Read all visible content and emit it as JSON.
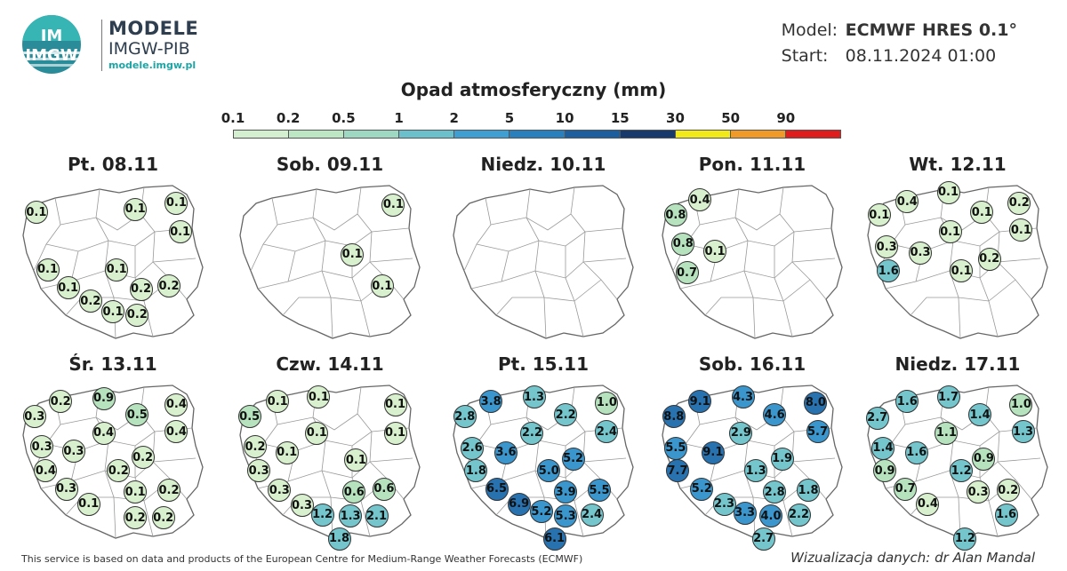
{
  "header": {
    "logo_text": "IMGW",
    "logo_title": "MODELE",
    "logo_subtitle": "IMGW-PIB",
    "logo_url": "modele.imgw.pl",
    "model_label": "Model:",
    "model_value": "ECMWF HRES 0.1°",
    "start_label": "Start:",
    "start_value": "08.11.2024 01:00"
  },
  "legend": {
    "title": "Opad atmosferyczny (mm)",
    "ticks": [
      "0.1",
      "0.2",
      "0.5",
      "1",
      "2",
      "5",
      "10",
      "15",
      "30",
      "50",
      "90"
    ],
    "colors": [
      "#ffffff",
      "#d4eed0",
      "#bde7c4",
      "#9ed8c3",
      "#6cc0cc",
      "#3f9fd2",
      "#2a7fbd",
      "#1d5f9e",
      "#17396b",
      "#f2e91a",
      "#f09a2a",
      "#e01d1d"
    ]
  },
  "colors": {
    "low": "#d8f0cd",
    "light": "#b6e2be",
    "mid": "#74c5cc",
    "high": "#3a96cc",
    "very_high": "#2872b0"
  },
  "panels": [
    {
      "title": "Pt. 08.11",
      "values": [
        {
          "v": "0.1",
          "x": 0.09,
          "y": 0.2
        },
        {
          "v": "0.1",
          "x": 0.62,
          "y": 0.18
        },
        {
          "v": "0.1",
          "x": 0.84,
          "y": 0.14
        },
        {
          "v": "0.1",
          "x": 0.86,
          "y": 0.33
        },
        {
          "v": "0.1",
          "x": 0.15,
          "y": 0.58
        },
        {
          "v": "0.1",
          "x": 0.52,
          "y": 0.58
        },
        {
          "v": "0.1",
          "x": 0.26,
          "y": 0.7
        },
        {
          "v": "0.2",
          "x": 0.65,
          "y": 0.71
        },
        {
          "v": "0.2",
          "x": 0.8,
          "y": 0.69
        },
        {
          "v": "0.2",
          "x": 0.38,
          "y": 0.79
        },
        {
          "v": "0.1",
          "x": 0.5,
          "y": 0.86
        },
        {
          "v": "0.2",
          "x": 0.63,
          "y": 0.88
        }
      ]
    },
    {
      "title": "Sob. 09.11",
      "values": [
        {
          "v": "0.1",
          "x": 0.84,
          "y": 0.15
        },
        {
          "v": "0.1",
          "x": 0.62,
          "y": 0.48
        },
        {
          "v": "0.1",
          "x": 0.78,
          "y": 0.69
        }
      ]
    },
    {
      "title": "Niedz. 10.11",
      "values": []
    },
    {
      "title": "Pon. 11.11",
      "values": [
        {
          "v": "0.4",
          "x": 0.22,
          "y": 0.12
        },
        {
          "v": "0.8",
          "x": 0.09,
          "y": 0.22
        },
        {
          "v": "0.8",
          "x": 0.13,
          "y": 0.41
        },
        {
          "v": "0.1",
          "x": 0.3,
          "y": 0.46
        },
        {
          "v": "0.7",
          "x": 0.15,
          "y": 0.6
        }
      ]
    },
    {
      "title": "Wt. 12.11",
      "values": [
        {
          "v": "0.4",
          "x": 0.23,
          "y": 0.13
        },
        {
          "v": "0.1",
          "x": 0.45,
          "y": 0.07
        },
        {
          "v": "0.2",
          "x": 0.83,
          "y": 0.14
        },
        {
          "v": "0.1",
          "x": 0.08,
          "y": 0.22
        },
        {
          "v": "0.1",
          "x": 0.63,
          "y": 0.2
        },
        {
          "v": "0.1",
          "x": 0.84,
          "y": 0.32
        },
        {
          "v": "0.1",
          "x": 0.46,
          "y": 0.33
        },
        {
          "v": "0.3",
          "x": 0.12,
          "y": 0.43
        },
        {
          "v": "0.3",
          "x": 0.3,
          "y": 0.47
        },
        {
          "v": "0.2",
          "x": 0.67,
          "y": 0.51
        },
        {
          "v": "0.1",
          "x": 0.52,
          "y": 0.59
        },
        {
          "v": "1.6",
          "x": 0.13,
          "y": 0.59
        }
      ]
    },
    {
      "title": "Śr. 13.11",
      "values": [
        {
          "v": "0.2",
          "x": 0.22,
          "y": 0.13
        },
        {
          "v": "0.9",
          "x": 0.45,
          "y": 0.11
        },
        {
          "v": "0.4",
          "x": 0.84,
          "y": 0.15
        },
        {
          "v": "0.3",
          "x": 0.08,
          "y": 0.23
        },
        {
          "v": "0.5",
          "x": 0.63,
          "y": 0.22
        },
        {
          "v": "0.4",
          "x": 0.84,
          "y": 0.33
        },
        {
          "v": "0.4",
          "x": 0.45,
          "y": 0.34
        },
        {
          "v": "0.3",
          "x": 0.12,
          "y": 0.43
        },
        {
          "v": "0.3",
          "x": 0.29,
          "y": 0.46
        },
        {
          "v": "0.2",
          "x": 0.66,
          "y": 0.5
        },
        {
          "v": "0.4",
          "x": 0.14,
          "y": 0.59
        },
        {
          "v": "0.2",
          "x": 0.53,
          "y": 0.59
        },
        {
          "v": "0.3",
          "x": 0.25,
          "y": 0.71
        },
        {
          "v": "0.1",
          "x": 0.62,
          "y": 0.73
        },
        {
          "v": "0.2",
          "x": 0.8,
          "y": 0.72
        },
        {
          "v": "0.1",
          "x": 0.37,
          "y": 0.81
        },
        {
          "v": "0.2",
          "x": 0.62,
          "y": 0.9
        },
        {
          "v": "0.2",
          "x": 0.77,
          "y": 0.9
        }
      ]
    },
    {
      "title": "Czw. 14.11",
      "values": [
        {
          "v": "0.1",
          "x": 0.22,
          "y": 0.13
        },
        {
          "v": "0.1",
          "x": 0.44,
          "y": 0.1
        },
        {
          "v": "0.1",
          "x": 0.85,
          "y": 0.15
        },
        {
          "v": "0.5",
          "x": 0.07,
          "y": 0.23
        },
        {
          "v": "0.1",
          "x": 0.43,
          "y": 0.34
        },
        {
          "v": "0.1",
          "x": 0.85,
          "y": 0.34
        },
        {
          "v": "0.2",
          "x": 0.1,
          "y": 0.43
        },
        {
          "v": "0.1",
          "x": 0.27,
          "y": 0.47
        },
        {
          "v": "0.1",
          "x": 0.64,
          "y": 0.52
        },
        {
          "v": "0.3",
          "x": 0.12,
          "y": 0.59
        },
        {
          "v": "0.3",
          "x": 0.23,
          "y": 0.72
        },
        {
          "v": "0.6",
          "x": 0.63,
          "y": 0.73
        },
        {
          "v": "0.6",
          "x": 0.79,
          "y": 0.71
        },
        {
          "v": "0.3",
          "x": 0.35,
          "y": 0.82
        },
        {
          "v": "1.2",
          "x": 0.46,
          "y": 0.88
        },
        {
          "v": "1.3",
          "x": 0.61,
          "y": 0.89
        },
        {
          "v": "2.1",
          "x": 0.75,
          "y": 0.89
        },
        {
          "v": "1.8",
          "x": 0.55,
          "y": 1.04
        }
      ]
    },
    {
      "title": "Pt. 15.11",
      "values": [
        {
          "v": "3.8",
          "x": 0.22,
          "y": 0.13
        },
        {
          "v": "1.3",
          "x": 0.45,
          "y": 0.1
        },
        {
          "v": "1.0",
          "x": 0.84,
          "y": 0.14
        },
        {
          "v": "2.8",
          "x": 0.08,
          "y": 0.23
        },
        {
          "v": "2.2",
          "x": 0.62,
          "y": 0.22
        },
        {
          "v": "2.4",
          "x": 0.84,
          "y": 0.33
        },
        {
          "v": "2.2",
          "x": 0.44,
          "y": 0.34
        },
        {
          "v": "2.6",
          "x": 0.12,
          "y": 0.44
        },
        {
          "v": "3.6",
          "x": 0.3,
          "y": 0.47
        },
        {
          "v": "5.2",
          "x": 0.66,
          "y": 0.51
        },
        {
          "v": "1.8",
          "x": 0.14,
          "y": 0.59
        },
        {
          "v": "5.0",
          "x": 0.53,
          "y": 0.59
        },
        {
          "v": "6.5",
          "x": 0.25,
          "y": 0.71
        },
        {
          "v": "3.9",
          "x": 0.62,
          "y": 0.73
        },
        {
          "v": "5.5",
          "x": 0.8,
          "y": 0.72
        },
        {
          "v": "6.9",
          "x": 0.37,
          "y": 0.81
        },
        {
          "v": "5.2",
          "x": 0.49,
          "y": 0.86
        },
        {
          "v": "5.3",
          "x": 0.62,
          "y": 0.89
        },
        {
          "v": "2.4",
          "x": 0.76,
          "y": 0.88
        },
        {
          "v": "6.1",
          "x": 0.56,
          "y": 1.04
        }
      ]
    },
    {
      "title": "Sob. 16.11",
      "values": [
        {
          "v": "9.1",
          "x": 0.22,
          "y": 0.13
        },
        {
          "v": "4.3",
          "x": 0.45,
          "y": 0.1
        },
        {
          "v": "8.0",
          "x": 0.84,
          "y": 0.14
        },
        {
          "v": "8.8",
          "x": 0.08,
          "y": 0.23
        },
        {
          "v": "4.6",
          "x": 0.62,
          "y": 0.22
        },
        {
          "v": "5.7",
          "x": 0.85,
          "y": 0.33
        },
        {
          "v": "2.9",
          "x": 0.44,
          "y": 0.34
        },
        {
          "v": "5.5",
          "x": 0.09,
          "y": 0.44
        },
        {
          "v": "9.1",
          "x": 0.29,
          "y": 0.47
        },
        {
          "v": "1.9",
          "x": 0.66,
          "y": 0.51
        },
        {
          "v": "7.7",
          "x": 0.1,
          "y": 0.59
        },
        {
          "v": "1.3",
          "x": 0.52,
          "y": 0.59
        },
        {
          "v": "5.2",
          "x": 0.23,
          "y": 0.71
        },
        {
          "v": "2.8",
          "x": 0.62,
          "y": 0.73
        },
        {
          "v": "1.8",
          "x": 0.8,
          "y": 0.72
        },
        {
          "v": "2.3",
          "x": 0.35,
          "y": 0.81
        },
        {
          "v": "3.3",
          "x": 0.46,
          "y": 0.87
        },
        {
          "v": "4.0",
          "x": 0.6,
          "y": 0.89
        },
        {
          "v": "2.2",
          "x": 0.75,
          "y": 0.88
        },
        {
          "v": "2.7",
          "x": 0.56,
          "y": 1.04
        }
      ]
    },
    {
      "title": "Niedz. 17.11",
      "values": [
        {
          "v": "1.6",
          "x": 0.23,
          "y": 0.13
        },
        {
          "v": "1.7",
          "x": 0.45,
          "y": 0.1
        },
        {
          "v": "1.0",
          "x": 0.84,
          "y": 0.15
        },
        {
          "v": "2.7",
          "x": 0.07,
          "y": 0.24
        },
        {
          "v": "1.4",
          "x": 0.62,
          "y": 0.22
        },
        {
          "v": "1.3",
          "x": 0.85,
          "y": 0.33
        },
        {
          "v": "1.1",
          "x": 0.44,
          "y": 0.34
        },
        {
          "v": "1.4",
          "x": 0.1,
          "y": 0.44
        },
        {
          "v": "1.6",
          "x": 0.28,
          "y": 0.47
        },
        {
          "v": "0.9",
          "x": 0.64,
          "y": 0.51
        },
        {
          "v": "0.9",
          "x": 0.11,
          "y": 0.59
        },
        {
          "v": "1.2",
          "x": 0.52,
          "y": 0.59
        },
        {
          "v": "0.7",
          "x": 0.22,
          "y": 0.71
        },
        {
          "v": "0.3",
          "x": 0.61,
          "y": 0.73
        },
        {
          "v": "0.2",
          "x": 0.77,
          "y": 0.72
        },
        {
          "v": "0.4",
          "x": 0.34,
          "y": 0.81
        },
        {
          "v": "1.6",
          "x": 0.76,
          "y": 0.88
        },
        {
          "v": "1.2",
          "x": 0.54,
          "y": 1.04
        }
      ]
    }
  ],
  "footer": {
    "source": "This service is based on data and products of the European Centre for Medium-Range Weather Forecasts (ECMWF)",
    "credit": "Wizualizacja danych: dr Alan Mandal"
  }
}
